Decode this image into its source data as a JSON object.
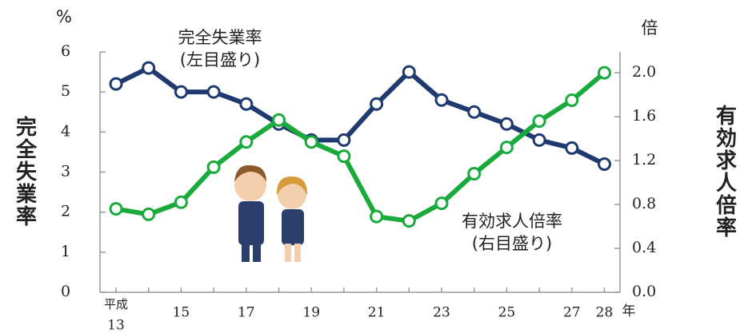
{
  "chart_data": {
    "type": "line",
    "y_unit": "%",
    "y2_unit": "倍",
    "ylabel": "完全失業率",
    "y2label": "有効求人倍率",
    "x_prefix": "平成",
    "x_unit": "年",
    "categories": [
      "13",
      null,
      "15",
      null,
      "17",
      null,
      "19",
      null,
      "21",
      null,
      "23",
      null,
      "25",
      null,
      "27",
      "28"
    ],
    "series": [
      {
        "name": "完全失業率",
        "note": "(左目盛り)",
        "color": "#1f3a6e",
        "axis": "y",
        "values": [
          5.2,
          5.6,
          5.0,
          5.0,
          4.7,
          4.2,
          3.8,
          3.8,
          4.7,
          5.5,
          4.8,
          4.5,
          4.2,
          3.8,
          3.6,
          3.2
        ]
      },
      {
        "name": "有効求人倍率",
        "note": "(右目盛り)",
        "color": "#1aaa3c",
        "axis": "y2",
        "values": [
          0.76,
          0.71,
          0.82,
          1.14,
          1.37,
          1.57,
          1.37,
          1.24,
          0.69,
          0.65,
          0.81,
          1.08,
          1.32,
          1.56,
          1.75,
          2.0
        ]
      }
    ],
    "ylim": [
      0,
      6
    ],
    "yticks": [
      0,
      1,
      2,
      3,
      4,
      5,
      6
    ],
    "y2lim": [
      0,
      2.19
    ],
    "y2ticks": [
      {
        "value": 0,
        "label": "0.0"
      },
      0.4,
      0.8,
      1.2,
      1.6,
      {
        "value": 2,
        "label": "2.0"
      }
    ]
  }
}
